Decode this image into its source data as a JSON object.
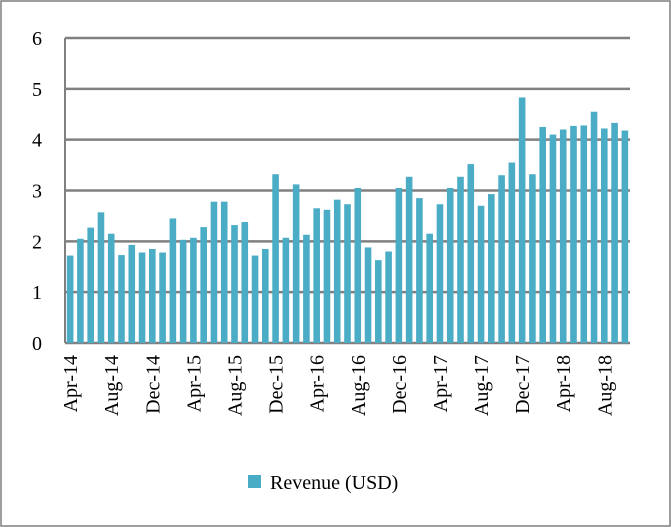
{
  "chart_data": {
    "type": "bar",
    "categories": [
      "Apr-14",
      null,
      null,
      null,
      "Aug-14",
      null,
      null,
      null,
      "Dec-14",
      null,
      null,
      null,
      "Apr-15",
      null,
      null,
      null,
      "Aug-15",
      null,
      null,
      null,
      "Dec-15",
      null,
      null,
      null,
      "Apr-16",
      null,
      null,
      null,
      "Aug-16",
      null,
      null,
      null,
      "Dec-16",
      null,
      null,
      null,
      "Apr-17",
      null,
      null,
      null,
      "Aug-17",
      null,
      null,
      null,
      "Dec-17",
      null,
      null,
      null,
      "Apr-18",
      null,
      null,
      null,
      "Aug-18",
      null,
      null
    ],
    "series": [
      {
        "name": "Revenue (USD)",
        "color": "#4bacc6",
        "values": [
          1.72,
          2.05,
          2.27,
          2.57,
          2.15,
          1.73,
          1.93,
          1.78,
          1.85,
          1.78,
          2.45,
          2.03,
          2.07,
          2.28,
          2.78,
          2.78,
          2.32,
          2.38,
          1.72,
          1.85,
          3.32,
          2.07,
          3.12,
          2.13,
          2.65,
          2.62,
          2.82,
          2.73,
          3.05,
          1.88,
          1.63,
          1.8,
          3.05,
          3.27,
          2.85,
          2.15,
          2.73,
          3.05,
          3.27,
          3.52,
          2.7,
          2.93,
          3.3,
          3.55,
          4.83,
          3.32,
          4.25,
          4.1,
          4.2,
          4.27,
          4.28,
          4.55,
          4.22,
          4.33,
          4.18
        ]
      }
    ],
    "ylim": [
      0,
      6
    ],
    "yticks": [
      0,
      1,
      2,
      3,
      4,
      5,
      6
    ],
    "grid": true,
    "legend": "bottom"
  }
}
